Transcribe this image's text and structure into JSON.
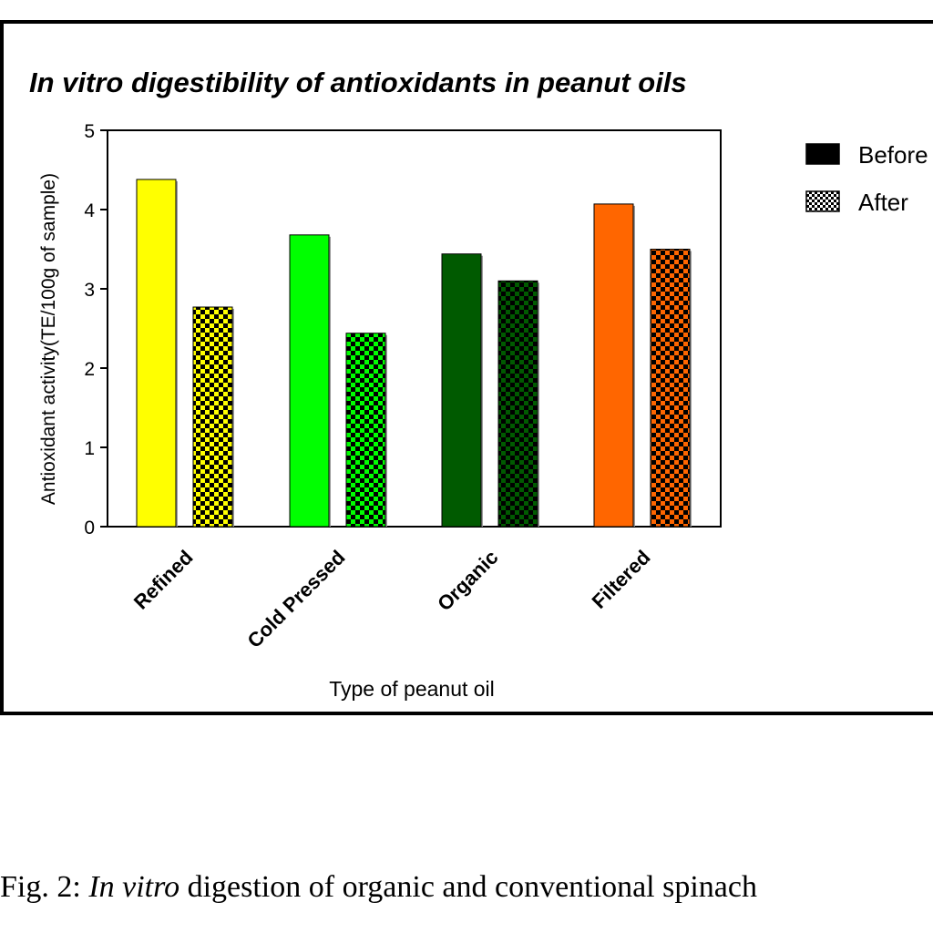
{
  "figure": {
    "caption_label": "Fig. 2: ",
    "caption_italic": "In vitro",
    "caption_rest": " digestion of organic and conventional spinach"
  },
  "chart_data": {
    "type": "bar",
    "title_italic": "In vitro",
    "title_rest": " digestibility of antioxidants in peanut oils",
    "xlabel": "Type of peanut oil",
    "ylabel": "Antioxidant activity(TE/100g of sample)",
    "ylim": [
      0,
      5
    ],
    "yticks": [
      0,
      1,
      2,
      3,
      4,
      5
    ],
    "grid": false,
    "legend_position": "top-right",
    "categories": [
      "Refined",
      "Cold Pressed",
      "Organic",
      "Filtered"
    ],
    "category_colors": [
      "#ffff00",
      "#00ff00",
      "#005a00",
      "#ff6600"
    ],
    "series": [
      {
        "name": "Before",
        "pattern": "solid",
        "values": [
          4.38,
          3.68,
          3.44,
          4.07
        ]
      },
      {
        "name": "After",
        "pattern": "checkered",
        "values": [
          2.77,
          2.44,
          3.1,
          3.5
        ]
      }
    ]
  }
}
